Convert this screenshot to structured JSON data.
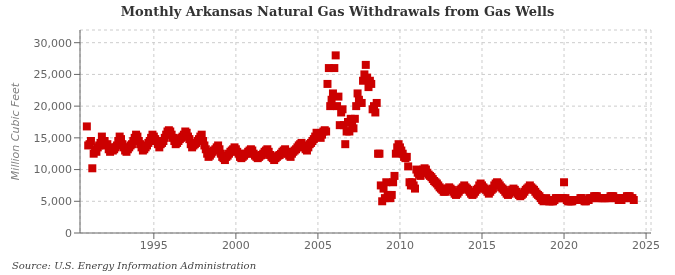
{
  "chart_data": {
    "type": "scatter",
    "title": "Monthly Arkansas Natural Gas Withdrawals from Gas Wells",
    "ylabel": "Million Cubic Feet",
    "annotations": [
      "Source: U.S. Energy Information Administration"
    ],
    "color": "#cc0000",
    "marker": "square",
    "grid": true,
    "xlim": [
      1990.5,
      2025.3
    ],
    "xticks": [
      1995,
      2000,
      2005,
      2010,
      2015,
      2020,
      2025
    ],
    "ylim": [
      0,
      32000
    ],
    "yticks": [
      0,
      {
        "value": 5000,
        "label": "5,000"
      },
      {
        "value": 10000,
        "label": "10,000"
      },
      {
        "value": 15000,
        "label": "15,000"
      },
      {
        "value": 20000,
        "label": "20,000"
      },
      {
        "value": 25000,
        "label": "25,000"
      },
      {
        "value": 30000,
        "label": "30,000"
      }
    ],
    "x": [
      1990.917,
      1991.0,
      1991.083,
      1991.167,
      1991.25,
      1991.333,
      1991.417,
      1991.5,
      1991.583,
      1991.667,
      1991.75,
      1991.833,
      1992.0,
      1992.083,
      1992.167,
      1992.25,
      1992.333,
      1992.417,
      1992.5,
      1992.583,
      1992.667,
      1992.75,
      1992.833,
      1992.917,
      1993.0,
      1993.083,
      1993.167,
      1993.25,
      1993.333,
      1993.417,
      1993.5,
      1993.583,
      1993.667,
      1993.75,
      1993.833,
      1993.917,
      1994.0,
      1994.083,
      1994.167,
      1994.25,
      1994.333,
      1994.417,
      1994.5,
      1994.583,
      1994.667,
      1994.75,
      1994.833,
      1994.917,
      1995.0,
      1995.083,
      1995.167,
      1995.25,
      1995.333,
      1995.417,
      1995.5,
      1995.583,
      1995.667,
      1995.75,
      1995.833,
      1995.917,
      1996.0,
      1996.083,
      1996.167,
      1996.25,
      1996.333,
      1996.417,
      1996.5,
      1996.583,
      1996.667,
      1996.75,
      1996.833,
      1996.917,
      1997.0,
      1997.083,
      1997.167,
      1997.25,
      1997.333,
      1997.417,
      1997.5,
      1997.583,
      1997.667,
      1997.75,
      1997.833,
      1997.917,
      1998.0,
      1998.083,
      1998.167,
      1998.25,
      1998.333,
      1998.417,
      1998.5,
      1998.583,
      1998.667,
      1998.75,
      1998.833,
      1998.917,
      1999.0,
      1999.083,
      1999.167,
      1999.25,
      1999.333,
      1999.417,
      1999.5,
      1999.583,
      1999.667,
      1999.75,
      1999.833,
      1999.917,
      2000.0,
      2000.083,
      2000.167,
      2000.25,
      2000.333,
      2000.417,
      2000.5,
      2000.583,
      2000.667,
      2000.75,
      2000.833,
      2000.917,
      2001.0,
      2001.083,
      2001.167,
      2001.25,
      2001.333,
      2001.417,
      2001.5,
      2001.583,
      2001.667,
      2001.75,
      2001.833,
      2001.917,
      2002.0,
      2002.083,
      2002.167,
      2002.25,
      2002.333,
      2002.417,
      2002.5,
      2002.583,
      2002.667,
      2002.75,
      2002.833,
      2002.917,
      2003.0,
      2003.083,
      2003.167,
      2003.25,
      2003.333,
      2003.417,
      2003.5,
      2003.583,
      2003.667,
      2003.75,
      2003.833,
      2003.917,
      2004.0,
      2004.083,
      2004.167,
      2004.25,
      2004.333,
      2004.417,
      2004.5,
      2004.583,
      2004.667,
      2004.75,
      2004.833,
      2004.917,
      2005.0,
      2005.083,
      2005.167,
      2005.25,
      2005.333,
      2005.417,
      2005.5,
      2005.583,
      2005.667,
      2005.75,
      2005.833,
      2005.917,
      2006.0,
      2006.083,
      2006.167,
      2006.25,
      2006.333,
      2006.417,
      2006.5,
      2006.583,
      2006.667,
      2006.75,
      2006.833,
      2006.917,
      2007.0,
      2007.083,
      2007.167,
      2007.25,
      2007.333,
      2007.417,
      2007.5,
      2007.583,
      2007.667,
      2007.75,
      2007.833,
      2007.917,
      2008.0,
      2008.083,
      2008.167,
      2008.25,
      2008.333,
      2008.417,
      2008.5,
      2008.583,
      2008.667,
      2008.75,
      2008.833,
      2008.917,
      2009.0,
      2009.083,
      2009.167,
      2009.25,
      2009.333,
      2009.417,
      2009.5,
      2009.583,
      2009.667,
      2009.75,
      2009.833,
      2009.917,
      2010.0,
      2010.083,
      2010.167,
      2010.25,
      2010.333,
      2010.417,
      2010.5,
      2010.583,
      2010.667,
      2010.75,
      2010.833,
      2010.917,
      2011.0,
      2011.083,
      2011.167,
      2011.25,
      2011.333,
      2011.417,
      2011.5,
      2011.583,
      2011.667,
      2011.75,
      2011.833,
      2011.917,
      2012.0,
      2012.083,
      2012.167,
      2012.25,
      2012.333,
      2012.417,
      2012.5,
      2012.583,
      2012.667,
      2012.75,
      2012.833,
      2012.917,
      2013.0,
      2013.083,
      2013.167,
      2013.25,
      2013.333,
      2013.417,
      2013.5,
      2013.583,
      2013.667,
      2013.75,
      2013.833,
      2013.917,
      2014.0,
      2014.083,
      2014.167,
      2014.25,
      2014.333,
      2014.417,
      2014.5,
      2014.583,
      2014.667,
      2014.75,
      2014.833,
      2014.917,
      2015.0,
      2015.083,
      2015.167,
      2015.25,
      2015.333,
      2015.417,
      2015.5,
      2015.583,
      2015.667,
      2015.75,
      2015.833,
      2015.917,
      2016.0,
      2016.083,
      2016.167,
      2016.25,
      2016.333,
      2016.417,
      2016.5,
      2016.583,
      2016.667,
      2016.75,
      2016.833,
      2016.917,
      2017.0,
      2017.083,
      2017.167,
      2017.25,
      2017.333,
      2017.417,
      2017.5,
      2017.583,
      2017.667,
      2017.75,
      2017.833,
      2017.917,
      2018.0,
      2018.083,
      2018.167,
      2018.25,
      2018.333,
      2018.417,
      2018.5,
      2018.583,
      2018.667,
      2018.75,
      2018.833,
      2018.917,
      2019.0,
      2019.083,
      2019.167,
      2019.25,
      2019.333,
      2019.417,
      2019.5,
      2019.583,
      2019.667,
      2019.75,
      2019.833,
      2019.917,
      2020.0,
      2020.083,
      2020.167,
      2020.25,
      2020.333,
      2020.417,
      2020.5,
      2020.583,
      2020.667,
      2020.75,
      2020.833,
      2020.917,
      2021.0,
      2021.083,
      2021.167,
      2021.25,
      2021.333,
      2021.417,
      2021.5,
      2021.583,
      2021.667,
      2021.75,
      2021.833,
      2021.917,
      2022.0,
      2022.083,
      2022.167,
      2022.25,
      2022.333,
      2022.417,
      2022.5,
      2022.583,
      2022.667,
      2022.75,
      2022.833,
      2022.917,
      2023.0,
      2023.083,
      2023.167,
      2023.25,
      2023.333,
      2023.417,
      2023.5,
      2023.583,
      2023.667,
      2023.75,
      2023.833,
      2023.917,
      2024.0,
      2024.083,
      2024.167,
      2024.25
    ],
    "values": [
      16800,
      13800,
      14000,
      14500,
      10200,
      12500,
      13200,
      12800,
      13500,
      13800,
      14200,
      15200,
      14500,
      13800,
      14000,
      13200,
      12800,
      13500,
      13000,
      13200,
      13500,
      13800,
      14500,
      15200,
      14800,
      14000,
      13500,
      13000,
      12800,
      13200,
      13500,
      13800,
      14000,
      14500,
      15000,
      15500,
      15200,
      14500,
      14000,
      13500,
      13000,
      13200,
      13500,
      13800,
      14200,
      14500,
      15000,
      15500,
      15200,
      14800,
      14500,
      14000,
      13500,
      14000,
      14200,
      14500,
      15000,
      15500,
      16000,
      16200,
      16000,
      15500,
      15000,
      14500,
      14000,
      14200,
      14500,
      14800,
      15000,
      15200,
      15500,
      16000,
      15800,
      15200,
      14800,
      14000,
      13500,
      13800,
      14000,
      14200,
      14500,
      14800,
      15200,
      15500,
      14500,
      13800,
      13200,
      12500,
      12000,
      12200,
      12500,
      12800,
      13000,
      13200,
      13500,
      13800,
      13200,
      12500,
      12000,
      11800,
      11500,
      12000,
      12200,
      12500,
      12800,
      13000,
      13200,
      13500,
      13200,
      12800,
      12500,
      12000,
      11800,
      12000,
      12200,
      12500,
      12500,
      12800,
      13000,
      13200,
      13000,
      12500,
      12200,
      12000,
      11800,
      12000,
      12200,
      12300,
      12500,
      12800,
      13000,
      13200,
      12800,
      12300,
      12000,
      11800,
      11500,
      11800,
      12000,
      12200,
      12300,
      12500,
      12800,
      13000,
      13200,
      12800,
      12500,
      12200,
      12000,
      12500,
      12800,
      13000,
      13200,
      13500,
      13800,
      14000,
      14200,
      13800,
      13500,
      13200,
      13000,
      13500,
      14000,
      14200,
      14500,
      14800,
      15200,
      15800,
      15500,
      15200,
      15000,
      15500,
      16000,
      16200,
      16000,
      23500,
      26000,
      20000,
      21000,
      22000,
      26000,
      28000,
      20000,
      21500,
      17000,
      19000,
      19500,
      17000,
      14000,
      16000,
      17500,
      16000,
      18000,
      17000,
      16500,
      18000,
      20000,
      22000,
      21000,
      20500,
      20500,
      24000,
      25000,
      26500,
      24500,
      23000,
      24000,
      23500,
      19500,
      20000,
      19000,
      20500,
      12500,
      12500,
      7500,
      5000,
      7000,
      5500,
      8000,
      6000,
      5500,
      5500,
      6000,
      8000,
      9000,
      12500,
      13500,
      14000,
      13500,
      13000,
      12500,
      12000,
      11800,
      12000,
      10500,
      8000,
      7500,
      8000,
      7500,
      7000,
      10000,
      9500,
      9200,
      9000,
      9500,
      10000,
      10200,
      10000,
      9500,
      9200,
      9000,
      8800,
      8500,
      8200,
      8000,
      7800,
      7500,
      7200,
      7000,
      6800,
      6500,
      6500,
      6800,
      7000,
      7200,
      7000,
      6800,
      6500,
      6200,
      6000,
      6200,
      6500,
      6800,
      7000,
      7200,
      7500,
      7200,
      7000,
      6800,
      6500,
      6200,
      6000,
      6200,
      6500,
      6800,
      7000,
      7500,
      7800,
      7500,
      7200,
      7000,
      6800,
      6500,
      6200,
      6500,
      6800,
      7000,
      7500,
      7800,
      8000,
      7800,
      7500,
      7200,
      7000,
      6800,
      6500,
      6200,
      6000,
      6200,
      6500,
      6800,
      7000,
      6800,
      6500,
      6200,
      6000,
      5800,
      6000,
      6200,
      6500,
      6800,
      7000,
      7200,
      7500,
      7200,
      7000,
      6800,
      6500,
      6200,
      6000,
      5800,
      5500,
      5200,
      5000,
      5200,
      5500,
      5200,
      5000,
      5000,
      5000,
      5000,
      5200,
      5500,
      5500,
      5500,
      5500,
      5500,
      5500,
      8000,
      5500,
      5200,
      5000,
      5000,
      5000,
      5000,
      5200,
      5200,
      5200,
      5200,
      5200,
      5500,
      5500,
      5200,
      5000,
      5000,
      5200,
      5200,
      5500,
      5500,
      5500,
      5800,
      5800,
      5800,
      5500,
      5500,
      5500,
      5500,
      5500,
      5500,
      5500,
      5500,
      5500,
      5800,
      5800,
      5800,
      5500,
      5500,
      5500,
      5200,
      5200,
      5200,
      5500,
      5500,
      5500,
      5800,
      5800,
      5800,
      5500,
      5500,
      5200
    ]
  }
}
